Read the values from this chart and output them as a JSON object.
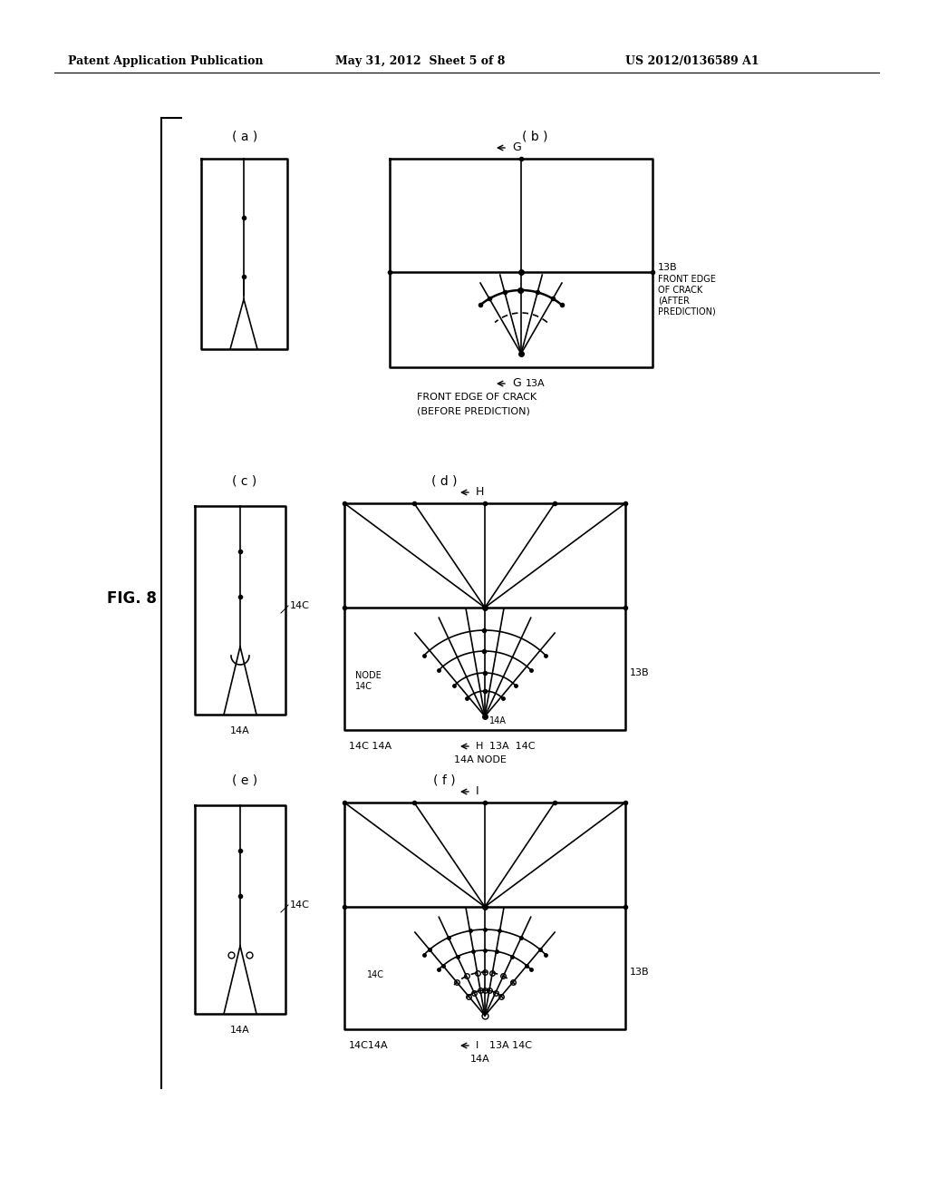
{
  "header_left": "Patent Application Publication",
  "header_mid": "May 31, 2012  Sheet 5 of 8",
  "header_right": "US 2012/0136589 A1",
  "fig_label": "FIG. 8",
  "bg_color": "#ffffff"
}
